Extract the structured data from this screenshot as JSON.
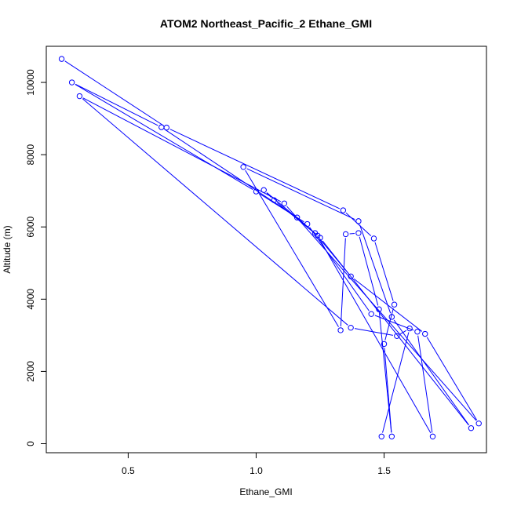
{
  "chart_data": {
    "type": "line",
    "title": "ATOM2 Northeast_Pacific_2 Ethane_GMI",
    "xlabel": "Ethane_GMI",
    "ylabel": "Altitude (m)",
    "xlim": [
      0.18,
      1.9
    ],
    "ylim": [
      -250,
      11000
    ],
    "xticks": [
      0.5,
      1.0,
      1.5
    ],
    "xtick_labels": [
      "0.5",
      "1.0",
      "1.5"
    ],
    "yticks": [
      0,
      2000,
      4000,
      6000,
      8000,
      10000
    ],
    "ytick_labels": [
      "0",
      "2000",
      "4000",
      "6000",
      "8000",
      "10000"
    ],
    "grid": false,
    "series_color": "#0000ff",
    "series": [
      {
        "style": "line-and-point",
        "points": [
          [
            0.24,
            10650
          ],
          [
            0.65,
            8750
          ],
          [
            1.34,
            6460
          ],
          [
            1.46,
            5680
          ],
          [
            1.54,
            3850
          ],
          [
            1.5,
            2760
          ],
          [
            1.53,
            200
          ],
          [
            1.48,
            3720
          ],
          [
            1.4,
            5830
          ],
          [
            1.35,
            5800
          ],
          [
            1.33,
            3140
          ],
          [
            0.95,
            7660
          ],
          [
            1.4,
            6160
          ],
          [
            1.53,
            3510
          ],
          [
            1.84,
            430
          ],
          [
            1.25,
            5700
          ],
          [
            1.16,
            6260
          ],
          [
            0.63,
            8760
          ],
          [
            0.28,
            10000
          ],
          [
            1.0,
            6980
          ],
          [
            1.2,
            6080
          ],
          [
            1.45,
            3590
          ],
          [
            1.63,
            3100
          ],
          [
            1.69,
            200
          ],
          [
            1.24,
            5760
          ],
          [
            1.07,
            6740
          ],
          [
            1.03,
            7020
          ],
          [
            1.23,
            5830
          ],
          [
            1.37,
            4630
          ],
          [
            1.66,
            3040
          ],
          [
            1.87,
            560
          ],
          [
            1.11,
            6650
          ],
          [
            0.31,
            9620
          ],
          [
            1.37,
            3210
          ],
          [
            1.55,
            2980
          ],
          [
            1.6,
            3190
          ],
          [
            1.49,
            200
          ]
        ]
      }
    ]
  }
}
